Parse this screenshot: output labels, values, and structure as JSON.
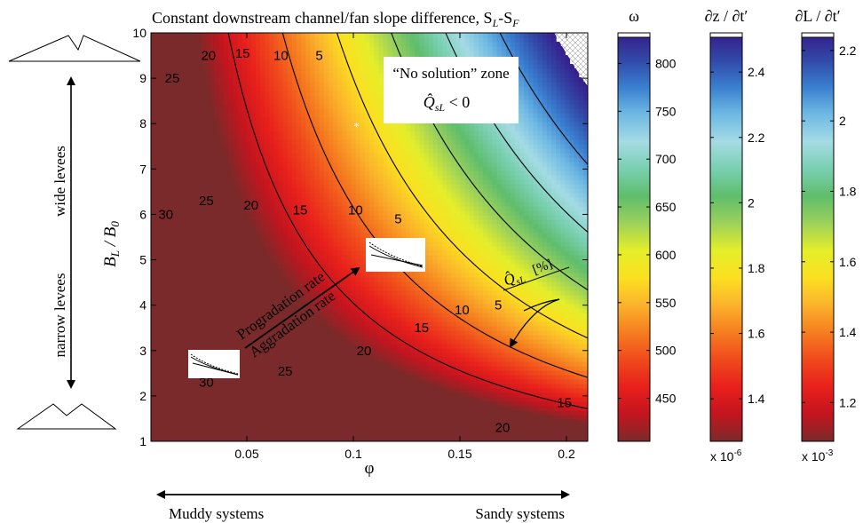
{
  "chart_data": {
    "type": "heatmap",
    "title": "Constant downstream channel/fan slope difference, S",
    "title_sub_L": "L",
    "title_dash": "-S",
    "title_sub_F": "F",
    "xlabel": "φ",
    "xlim": [
      0.005,
      0.21
    ],
    "x_ticks": [
      0.05,
      0.1,
      0.15,
      0.2
    ],
    "x_tick_labels": [
      "0.05",
      "0.1",
      "0.15",
      "0.2"
    ],
    "ylabel_main": "B",
    "ylabel_sub_L": "L",
    "ylabel_mid": " / B",
    "ylabel_sub_0": "0",
    "ylim": [
      1,
      10
    ],
    "y_ticks": [
      1,
      2,
      3,
      4,
      5,
      6,
      7,
      8,
      9,
      10
    ],
    "y_tick_labels": [
      "1",
      "2",
      "3",
      "4",
      "5",
      "6",
      "7",
      "8",
      "9",
      "10"
    ],
    "contour_levels": [
      5,
      10,
      15,
      20,
      25,
      30
    ],
    "contour_units": "[%]",
    "contour_labels": [
      {
        "text": "25",
        "x": 0.015,
        "y": 9.0
      },
      {
        "text": "20",
        "x": 0.032,
        "y": 9.5
      },
      {
        "text": "15",
        "x": 0.048,
        "y": 9.55
      },
      {
        "text": "10",
        "x": 0.066,
        "y": 9.5
      },
      {
        "text": "5",
        "x": 0.084,
        "y": 9.5
      },
      {
        "text": "30",
        "x": 0.012,
        "y": 6.0
      },
      {
        "text": "25",
        "x": 0.031,
        "y": 6.3
      },
      {
        "text": "20",
        "x": 0.052,
        "y": 6.2
      },
      {
        "text": "15",
        "x": 0.075,
        "y": 6.1
      },
      {
        "text": "10",
        "x": 0.101,
        "y": 6.1
      },
      {
        "text": "5",
        "x": 0.121,
        "y": 5.9
      },
      {
        "text": "30",
        "x": 0.031,
        "y": 2.3
      },
      {
        "text": "25",
        "x": 0.068,
        "y": 2.55
      },
      {
        "text": "20",
        "x": 0.105,
        "y": 3.0
      },
      {
        "text": "15",
        "x": 0.132,
        "y": 3.5
      },
      {
        "text": "10",
        "x": 0.151,
        "y": 3.9
      },
      {
        "text": "5",
        "x": 0.168,
        "y": 4.0
      },
      {
        "text": "15",
        "x": 0.199,
        "y": 1.85
      },
      {
        "text": "20",
        "x": 0.17,
        "y": 1.3
      }
    ],
    "no_solution_label": "“No solution” zone",
    "qhat_symbol": "Q̂",
    "qhat_sub": "sL",
    "qhat_rel": " < 0",
    "annotation_progradation": "Progradation rate",
    "annotation_aggradation": "Aggradation rate",
    "color_scale": [
      "#7a2a2a",
      "#c3151f",
      "#e8201c",
      "#f04a1c",
      "#f57e20",
      "#fbb22c",
      "#fbe020",
      "#e4ee2a",
      "#9dd25a",
      "#5fbd6b",
      "#79cfb0",
      "#a5dbe4",
      "#6fb9e3",
      "#3a7fd0",
      "#3149a8",
      "#361c8a"
    ],
    "colorbars": [
      {
        "label": "ω",
        "min": 405,
        "max": 832,
        "ticks": [
          450,
          500,
          550,
          600,
          650,
          700,
          750,
          800
        ],
        "tick_labels": [
          "450",
          "500",
          "550",
          "600",
          "650",
          "700",
          "750",
          "800"
        ],
        "multiplier": ""
      },
      {
        "label": "∂z / ∂t′",
        "min": 1.27,
        "max": 2.52,
        "ticks": [
          1.4,
          1.6,
          1.8,
          2.0,
          2.2,
          2.4
        ],
        "tick_labels": [
          "1.4",
          "1.6",
          "1.8",
          "2",
          "2.2",
          "2.4"
        ],
        "multiplier": "x 10",
        "multiplier_exp": "-6"
      },
      {
        "label": "∂L / ∂t′",
        "min": 1.09,
        "max": 2.25,
        "ticks": [
          1.2,
          1.4,
          1.6,
          1.8,
          2.0,
          2.2
        ],
        "tick_labels": [
          "1.2",
          "1.4",
          "1.6",
          "1.8",
          "2",
          "2.2"
        ],
        "multiplier": "x 10",
        "multiplier_exp": "-3"
      }
    ]
  },
  "left_annotations": {
    "wide": "wide levees",
    "narrow": "narrow levees"
  },
  "bottom_annotations": {
    "muddy": "Muddy systems",
    "sandy": "Sandy systems"
  }
}
